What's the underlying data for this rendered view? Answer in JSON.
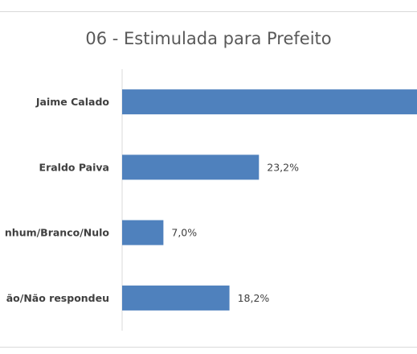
{
  "chart_data": {
    "type": "bar",
    "orientation": "horizontal",
    "title": "06 - Estimulada para Prefeito",
    "categories": [
      "Jaime Calado",
      "Eraldo Paiva",
      "Nenhum/Branco/Nulo",
      "Não sabe/Não respondeu"
    ],
    "visible_category_labels": [
      "Jaime Calado",
      "Eraldo Paiva",
      "nhum/Branco/Nulo",
      "ão/Não respondeu"
    ],
    "values": [
      51.6,
      23.2,
      7.0,
      18.2
    ],
    "data_labels": [
      "",
      "23,2%",
      "7,0%",
      "18,2%"
    ],
    "xlim": [
      0,
      50
    ],
    "bar_color": "#4f81bd",
    "gridlines": false,
    "legend": "none"
  }
}
